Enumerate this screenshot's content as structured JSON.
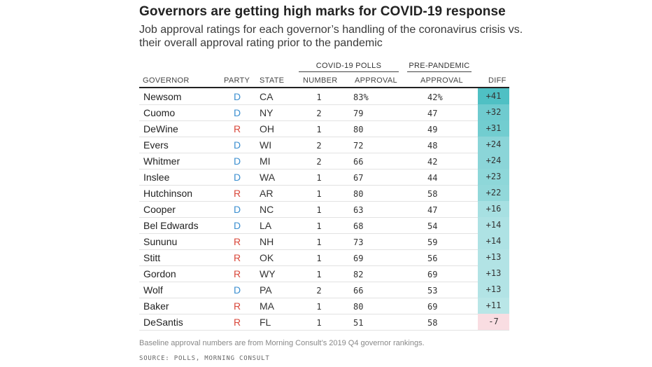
{
  "title": "Governors are getting high marks for COVID-19 response",
  "subtitle": "Job approval ratings for each governor’s handling of the coronavirus crisis vs. their overall approval rating prior to the pandemic",
  "footnote": "Baseline approval numbers are from Morning Consult’s 2019 Q4 governor rankings.",
  "source": "SOURCE: POLLS, MORNING CONSULT",
  "colors": {
    "dem": "#3b8fd0",
    "rep": "#d9473a",
    "diff_pos": "#4fc0c4",
    "diff_neg": "#f9dde2"
  },
  "chart_data": {
    "type": "table",
    "group_headers": {
      "covid": "COVID-19 POLLS",
      "pre": "PRE-PANDEMIC"
    },
    "columns": [
      "GOVERNOR",
      "PARTY",
      "STATE",
      "NUMBER",
      "APPROVAL",
      "APPROVAL",
      "DIFF"
    ],
    "rows": [
      {
        "governor": "Newsom",
        "party": "D",
        "state": "CA",
        "number": "1",
        "covid_approval": "83%",
        "pre_approval": "42%",
        "diff": "+41",
        "diff_value": 41
      },
      {
        "governor": "Cuomo",
        "party": "D",
        "state": "NY",
        "number": "2",
        "covid_approval": "79",
        "pre_approval": "47",
        "diff": "+32",
        "diff_value": 32
      },
      {
        "governor": "DeWine",
        "party": "R",
        "state": "OH",
        "number": "1",
        "covid_approval": "80",
        "pre_approval": "49",
        "diff": "+31",
        "diff_value": 31
      },
      {
        "governor": "Evers",
        "party": "D",
        "state": "WI",
        "number": "2",
        "covid_approval": "72",
        "pre_approval": "48",
        "diff": "+24",
        "diff_value": 24
      },
      {
        "governor": "Whitmer",
        "party": "D",
        "state": "MI",
        "number": "2",
        "covid_approval": "66",
        "pre_approval": "42",
        "diff": "+24",
        "diff_value": 24
      },
      {
        "governor": "Inslee",
        "party": "D",
        "state": "WA",
        "number": "1",
        "covid_approval": "67",
        "pre_approval": "44",
        "diff": "+23",
        "diff_value": 23
      },
      {
        "governor": "Hutchinson",
        "party": "R",
        "state": "AR",
        "number": "1",
        "covid_approval": "80",
        "pre_approval": "58",
        "diff": "+22",
        "diff_value": 22
      },
      {
        "governor": "Cooper",
        "party": "D",
        "state": "NC",
        "number": "1",
        "covid_approval": "63",
        "pre_approval": "47",
        "diff": "+16",
        "diff_value": 16
      },
      {
        "governor": "Bel Edwards",
        "party": "D",
        "state": "LA",
        "number": "1",
        "covid_approval": "68",
        "pre_approval": "54",
        "diff": "+14",
        "diff_value": 14
      },
      {
        "governor": "Sununu",
        "party": "R",
        "state": "NH",
        "number": "1",
        "covid_approval": "73",
        "pre_approval": "59",
        "diff": "+14",
        "diff_value": 14
      },
      {
        "governor": "Stitt",
        "party": "R",
        "state": "OK",
        "number": "1",
        "covid_approval": "69",
        "pre_approval": "56",
        "diff": "+13",
        "diff_value": 13
      },
      {
        "governor": "Gordon",
        "party": "R",
        "state": "WY",
        "number": "1",
        "covid_approval": "82",
        "pre_approval": "69",
        "diff": "+13",
        "diff_value": 13
      },
      {
        "governor": "Wolf",
        "party": "D",
        "state": "PA",
        "number": "2",
        "covid_approval": "66",
        "pre_approval": "53",
        "diff": "+13",
        "diff_value": 13
      },
      {
        "governor": "Baker",
        "party": "R",
        "state": "MA",
        "number": "1",
        "covid_approval": "80",
        "pre_approval": "69",
        "diff": "+11",
        "diff_value": 11
      },
      {
        "governor": "DeSantis",
        "party": "R",
        "state": "FL",
        "number": "1",
        "covid_approval": "51",
        "pre_approval": "58",
        "diff": "-7",
        "diff_value": -7
      }
    ]
  }
}
